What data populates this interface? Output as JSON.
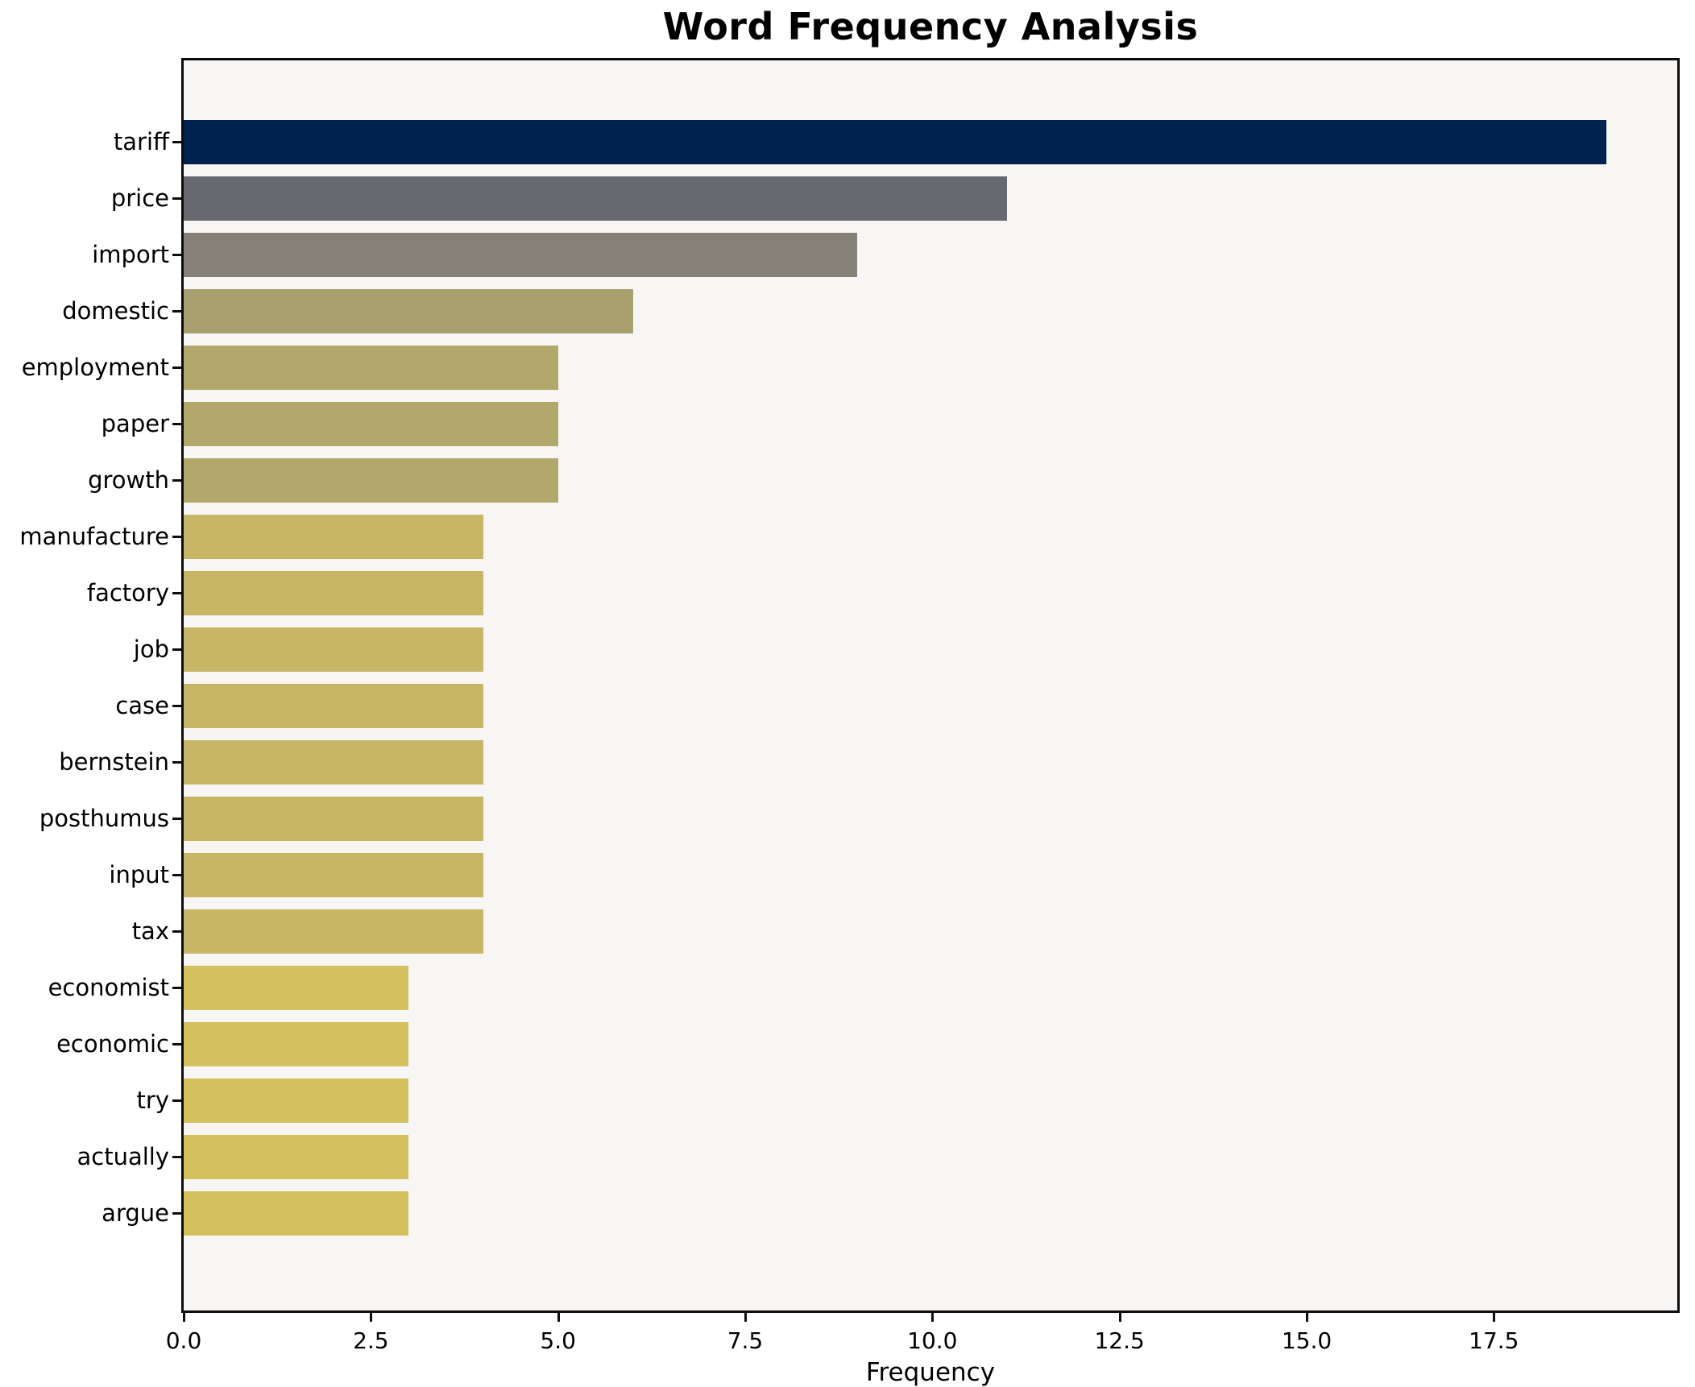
{
  "chart": {
    "title": "Word Frequency Analysis",
    "xlabel": "Frequency"
  },
  "chart_data": {
    "type": "bar",
    "orientation": "horizontal",
    "title": "Word Frequency Analysis",
    "xlabel": "Frequency",
    "ylabel": "",
    "categories": [
      "tariff",
      "price",
      "import",
      "domestic",
      "employment",
      "paper",
      "growth",
      "manufacture",
      "factory",
      "job",
      "case",
      "bernstein",
      "posthumus",
      "input",
      "tax",
      "economist",
      "economic",
      "try",
      "actually",
      "argue"
    ],
    "values": [
      19,
      11,
      9,
      6,
      5,
      5,
      5,
      4,
      4,
      4,
      4,
      4,
      4,
      4,
      4,
      3,
      3,
      3,
      3,
      3
    ],
    "bar_colors": [
      "#00224e",
      "#68696f",
      "#858178",
      "#a9a06f",
      "#b3a86b",
      "#b3a86b",
      "#b3a86b",
      "#c6b665",
      "#c6b665",
      "#c6b665",
      "#c6b665",
      "#c6b665",
      "#c6b665",
      "#c6b665",
      "#c6b665",
      "#d2c15e",
      "#d2c15e",
      "#d2c15e",
      "#d2c15e",
      "#d2c15e"
    ],
    "xlim": [
      0,
      19.95
    ],
    "xticks": [
      0.0,
      2.5,
      5.0,
      7.5,
      10.0,
      12.5,
      15.0,
      17.5
    ],
    "xtick_labels": [
      "0.0",
      "2.5",
      "5.0",
      "7.5",
      "10.0",
      "12.5",
      "15.0",
      "17.5"
    ],
    "grid": false,
    "legend": null,
    "colormap": "cividis (high value = dark blue, low value = yellow)",
    "plot_background": "#f7f6f4",
    "figure_background": "#ffffff"
  }
}
